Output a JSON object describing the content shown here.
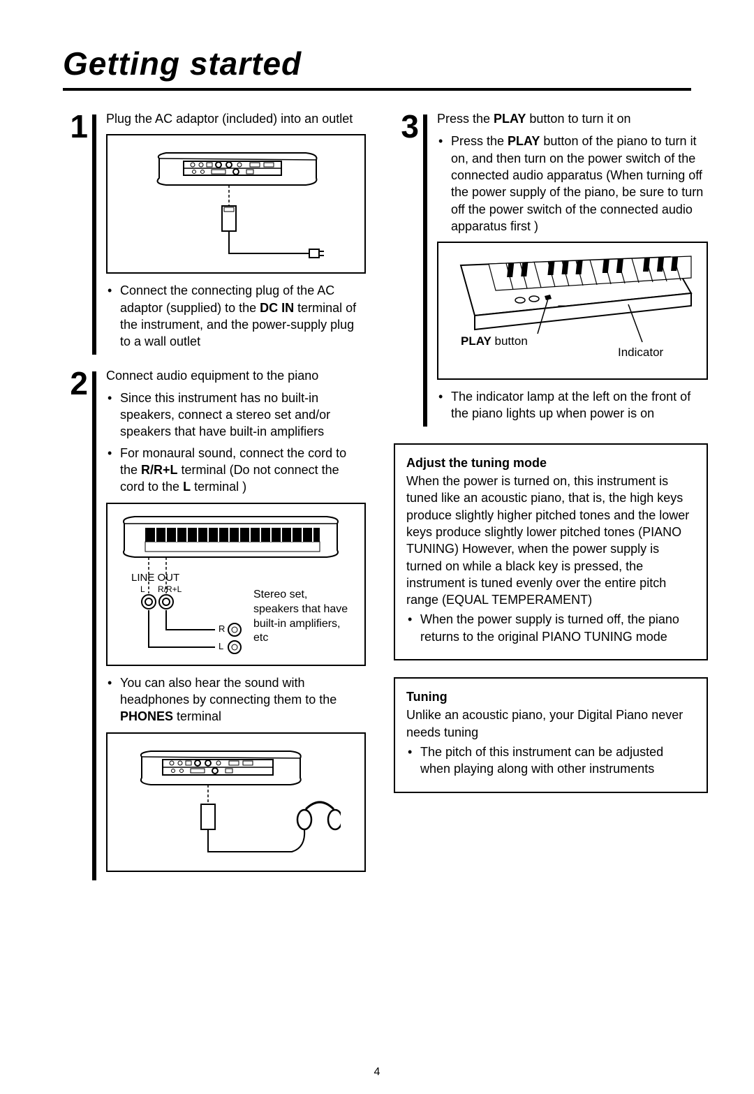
{
  "title": "Getting started",
  "pageNumber": "4",
  "left": {
    "step1": {
      "num": "1",
      "lead": "Plug the AC adaptor (included) into an outlet",
      "bullet": "Connect the connecting plug of the AC adaptor (supplied) to the <b>DC IN</b> terminal of the instrument, and the power-supply plug to a wall outlet"
    },
    "step2": {
      "num": "2",
      "lead": "Connect audio equipment to the piano",
      "bullet1": "Since this instrument has no built-in speakers, connect a stereo set and/or speakers that have built-in amplifiers",
      "bullet2": "For monaural sound, connect the cord to the <b>R/R+L</b> terminal  (Do not connect the cord to the <b>L</b> terminal )",
      "fig2_lineout": "LINE OUT",
      "fig2_l": "L",
      "fig2_r": "R/R+L",
      "fig2_jackR": "R",
      "fig2_jackL": "L",
      "fig2_caption": "Stereo set, speakers that have built-in amplifiers, etc",
      "bullet3": "You can also hear the sound with headphones by connecting them to the <b>PHONES</b> terminal"
    }
  },
  "right": {
    "step3": {
      "num": "3",
      "lead": "Press the <b>PLAY</b> button to turn it on",
      "bullet1": "Press the <b>PLAY</b> button of the piano to turn it on, and then turn on the power switch of the connected audio apparatus  (When turning off the power supply of the piano, be sure to turn off the power switch of the connected audio apparatus first )",
      "fig3_play": "<b>PLAY</b> button",
      "fig3_indicator": "Indicator",
      "bullet2": "The indicator lamp at the left on the front of the piano lights up when power is on"
    },
    "box1": {
      "title": "Adjust the tuning mode",
      "body": "When the power is turned on, this instrument is tuned like an acoustic piano, that is, the high keys produce slightly higher pitched tones and the lower keys produce slightly lower pitched tones (PIANO TUNING)  However, when the power supply is turned on while a black key is pressed, the instrument is tuned evenly over the entire pitch range (EQUAL TEMPERAMENT)",
      "bullet": "When the power supply is turned off, the piano returns to the original PIANO TUNING mode"
    },
    "box2": {
      "title": "Tuning",
      "body": "Unlike an acoustic piano, your Digital Piano never needs tuning",
      "bullet": "The pitch of this instrument can be adjusted when playing along with other instruments"
    }
  }
}
